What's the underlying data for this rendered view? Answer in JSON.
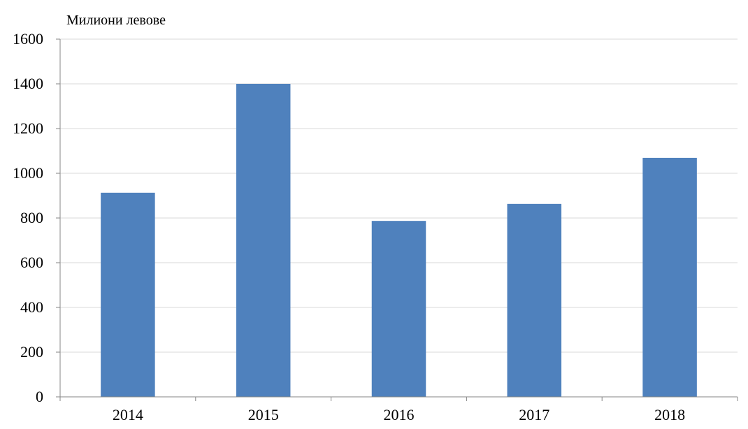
{
  "chart_data": {
    "type": "bar",
    "ylabel": "Милиони левове",
    "categories": [
      "2014",
      "2015",
      "2016",
      "2017",
      "2018"
    ],
    "values": [
      913,
      1400,
      787,
      863,
      1069
    ],
    "ylim": [
      0,
      1600
    ],
    "yticks": [
      0,
      200,
      400,
      600,
      800,
      1000,
      1200,
      1400,
      1600
    ],
    "grid": true,
    "legend": "none",
    "colors": {
      "bar": "#4f81bd",
      "grid": "#d9d9d9",
      "axis": "#868686",
      "text": "#000000"
    }
  }
}
